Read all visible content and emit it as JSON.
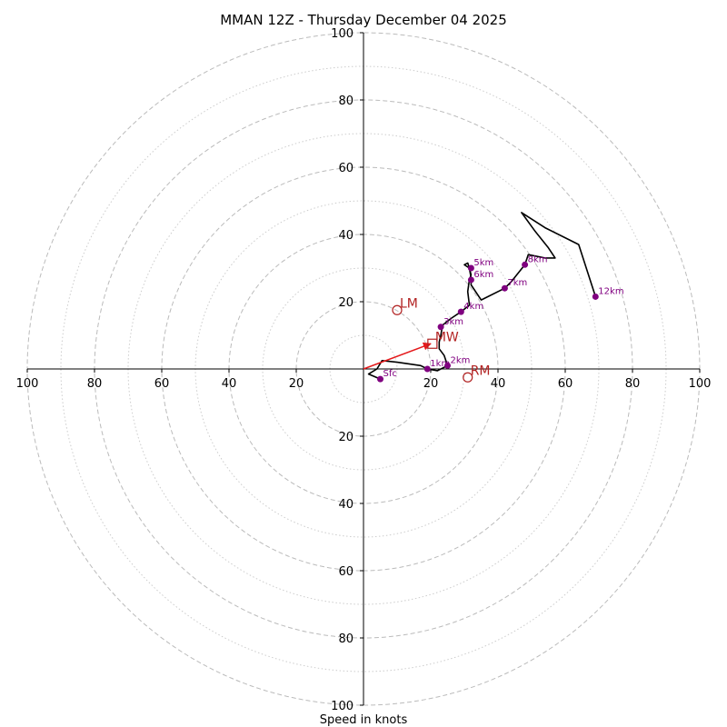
{
  "chart_data": {
    "type": "hodograph",
    "title": "MMAN 12Z - Thursday December 04 2025",
    "xlabel": "Speed in knots",
    "units": "knots",
    "range": [
      -100,
      100
    ],
    "ring_major": [
      20,
      40,
      60,
      80,
      100
    ],
    "ring_minor": [
      10,
      30,
      50,
      70,
      90
    ],
    "x_ticks": [
      {
        "value": -100,
        "label": "100"
      },
      {
        "value": -80,
        "label": "80"
      },
      {
        "value": -60,
        "label": "60"
      },
      {
        "value": -40,
        "label": "40"
      },
      {
        "value": -20,
        "label": "20"
      },
      {
        "value": 20,
        "label": "20"
      },
      {
        "value": 40,
        "label": "40"
      },
      {
        "value": 60,
        "label": "60"
      },
      {
        "value": 80,
        "label": "80"
      },
      {
        "value": 100,
        "label": "100"
      }
    ],
    "y_ticks": [
      {
        "value": 100,
        "label": "100"
      },
      {
        "value": 80,
        "label": "80"
      },
      {
        "value": 60,
        "label": "60"
      },
      {
        "value": 40,
        "label": "40"
      },
      {
        "value": 20,
        "label": "20"
      },
      {
        "value": -20,
        "label": "20"
      },
      {
        "value": -40,
        "label": "40"
      },
      {
        "value": -60,
        "label": "60"
      },
      {
        "value": -80,
        "label": "80"
      },
      {
        "value": -100,
        "label": "100"
      }
    ],
    "trace_uv": [
      [
        5,
        -3
      ],
      [
        1.5,
        -1.5
      ],
      [
        4,
        0
      ],
      [
        5.5,
        2.5
      ],
      [
        10,
        2
      ],
      [
        17,
        1
      ],
      [
        19,
        0
      ],
      [
        22,
        -0.5
      ],
      [
        25,
        1
      ],
      [
        24,
        4
      ],
      [
        22.5,
        6
      ],
      [
        22.5,
        8
      ],
      [
        23,
        10
      ],
      [
        23.5,
        13
      ],
      [
        26,
        15
      ],
      [
        29,
        17
      ],
      [
        31.5,
        19
      ],
      [
        31,
        23
      ],
      [
        31.5,
        26.5
      ],
      [
        32,
        28
      ],
      [
        31.5,
        30
      ],
      [
        30,
        31
      ],
      [
        31,
        31.5
      ],
      [
        31.5,
        30
      ],
      [
        32,
        27
      ],
      [
        32,
        25
      ],
      [
        35,
        20.5
      ],
      [
        42,
        24
      ],
      [
        44,
        26
      ],
      [
        48,
        31
      ],
      [
        49,
        34
      ],
      [
        54,
        33
      ],
      [
        57,
        33
      ],
      [
        55,
        36
      ],
      [
        51,
        41
      ],
      [
        47,
        46.5
      ],
      [
        54,
        42
      ],
      [
        64,
        37
      ],
      [
        69,
        21.5
      ]
    ],
    "height_markers": [
      {
        "label": "Sfc",
        "u": 5,
        "v": -3
      },
      {
        "label": "1km",
        "u": 19,
        "v": 0
      },
      {
        "label": "2km",
        "u": 25,
        "v": 1
      },
      {
        "label": "3km",
        "u": 23,
        "v": 12.5
      },
      {
        "label": "4km",
        "u": 29,
        "v": 17
      },
      {
        "label": "5km",
        "u": 32,
        "v": 30
      },
      {
        "label": "6km",
        "u": 32,
        "v": 26.5
      },
      {
        "label": "7km",
        "u": 42,
        "v": 24
      },
      {
        "label": "8km",
        "u": 48,
        "v": 31
      },
      {
        "label": "12km",
        "u": 69,
        "v": 21.5
      }
    ],
    "storm_motion": [
      {
        "label": "LM",
        "u": 10,
        "v": 17.5,
        "marker": "circle"
      },
      {
        "label": "MW",
        "u": 20.5,
        "v": 7.5,
        "marker": "square"
      },
      {
        "label": "RM",
        "u": 31,
        "v": -2.5,
        "marker": "circle"
      }
    ],
    "mean_wind_vector": {
      "from_u": 0,
      "from_v": 0,
      "to_u": 20,
      "to_v": 7.5
    },
    "colors": {
      "trace": "#000000",
      "marker": "#800080",
      "storm_motion": "#b22222",
      "vector": "#e41a1c",
      "grid": "#bbbbbb"
    }
  }
}
